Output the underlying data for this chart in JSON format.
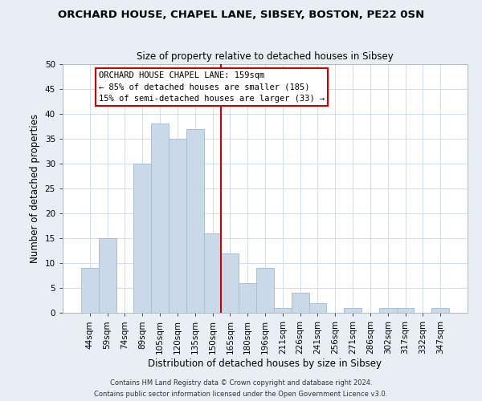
{
  "title": "ORCHARD HOUSE, CHAPEL LANE, SIBSEY, BOSTON, PE22 0SN",
  "subtitle": "Size of property relative to detached houses in Sibsey",
  "xlabel": "Distribution of detached houses by size in Sibsey",
  "ylabel": "Number of detached properties",
  "bin_labels": [
    "44sqm",
    "59sqm",
    "74sqm",
    "89sqm",
    "105sqm",
    "120sqm",
    "135sqm",
    "150sqm",
    "165sqm",
    "180sqm",
    "196sqm",
    "211sqm",
    "226sqm",
    "241sqm",
    "256sqm",
    "271sqm",
    "286sqm",
    "302sqm",
    "317sqm",
    "332sqm",
    "347sqm"
  ],
  "bar_values": [
    9,
    15,
    0,
    30,
    38,
    35,
    37,
    16,
    12,
    6,
    9,
    1,
    4,
    2,
    0,
    1,
    0,
    1,
    1,
    0,
    1
  ],
  "bar_color": "#c9d9e8",
  "bar_edge_color": "#a8c0d4",
  "vline_color": "#cc0000",
  "annotation_text": "ORCHARD HOUSE CHAPEL LANE: 159sqm\n← 85% of detached houses are smaller (185)\n15% of semi-detached houses are larger (33) →",
  "annotation_box_color": "#ffffff",
  "annotation_box_edge_color": "#cc0000",
  "ylim": [
    0,
    50
  ],
  "yticks": [
    0,
    5,
    10,
    15,
    20,
    25,
    30,
    35,
    40,
    45,
    50
  ],
  "footer_line1": "Contains HM Land Registry data © Crown copyright and database right 2024.",
  "footer_line2": "Contains public sector information licensed under the Open Government Licence v3.0.",
  "bg_color": "#e8eef4",
  "plot_bg_color": "#ffffff",
  "grid_color": "#d0dce8",
  "title_fontsize": 9.5,
  "subtitle_fontsize": 8.5,
  "xlabel_fontsize": 8.5,
  "ylabel_fontsize": 8.5,
  "tick_fontsize": 7.5,
  "footer_fontsize": 6.0,
  "annotation_fontsize": 7.5
}
